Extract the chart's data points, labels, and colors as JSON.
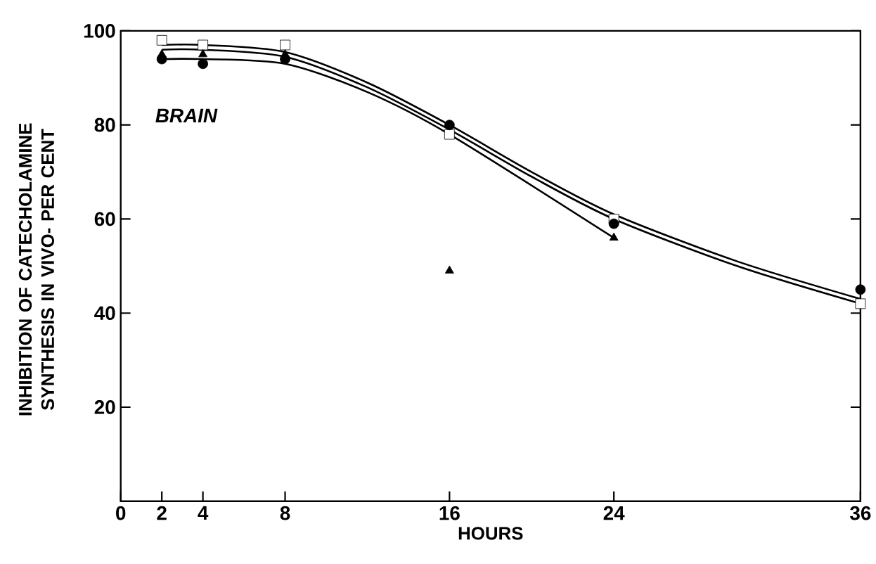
{
  "chart_data": {
    "type": "line",
    "xlabel": "HOURS",
    "ylabel": "INHIBITION OF CATECHOLAMINE\nSYNTHESIS IN VIVO- PER CENT",
    "annotations": [
      "BRAIN"
    ],
    "xlim": [
      0,
      36
    ],
    "ylim": [
      0,
      100
    ],
    "xticks": [
      0,
      2,
      4,
      8,
      16,
      24,
      36
    ],
    "yticks": [
      20,
      40,
      60,
      80,
      100
    ],
    "series": [
      {
        "marker": "none",
        "color": "#000000",
        "x": [
          2,
          4,
          8,
          12,
          16,
          20,
          24,
          30,
          36
        ],
        "values": [
          97,
          97,
          95.5,
          89,
          80,
          70,
          61,
          51,
          43
        ]
      },
      {
        "marker": "none",
        "color": "#000000",
        "x": [
          2,
          4,
          8,
          12,
          16,
          20,
          24,
          30,
          36
        ],
        "values": [
          96,
          96,
          94.5,
          88,
          79,
          69,
          60,
          50,
          42
        ]
      },
      {
        "marker": "none",
        "color": "#000000",
        "x": [
          2,
          4,
          8,
          12,
          16,
          24
        ],
        "values": [
          94,
          94,
          93,
          87,
          78,
          56
        ]
      },
      {
        "type": "scatter",
        "marker": "square",
        "color": "#000000",
        "x": [
          2,
          4,
          8,
          16,
          24,
          36
        ],
        "values": [
          98,
          97,
          97,
          78,
          60,
          42
        ]
      },
      {
        "type": "scatter",
        "marker": "circle",
        "color": "#000000",
        "x": [
          2,
          4,
          8,
          16,
          24,
          36
        ],
        "values": [
          94,
          93,
          94,
          80,
          59,
          45
        ]
      },
      {
        "type": "scatter",
        "marker": "triangle",
        "color": "#000000",
        "x": [
          2,
          4,
          8,
          16,
          24
        ],
        "values": [
          95,
          95,
          95,
          49,
          56
        ]
      }
    ]
  }
}
